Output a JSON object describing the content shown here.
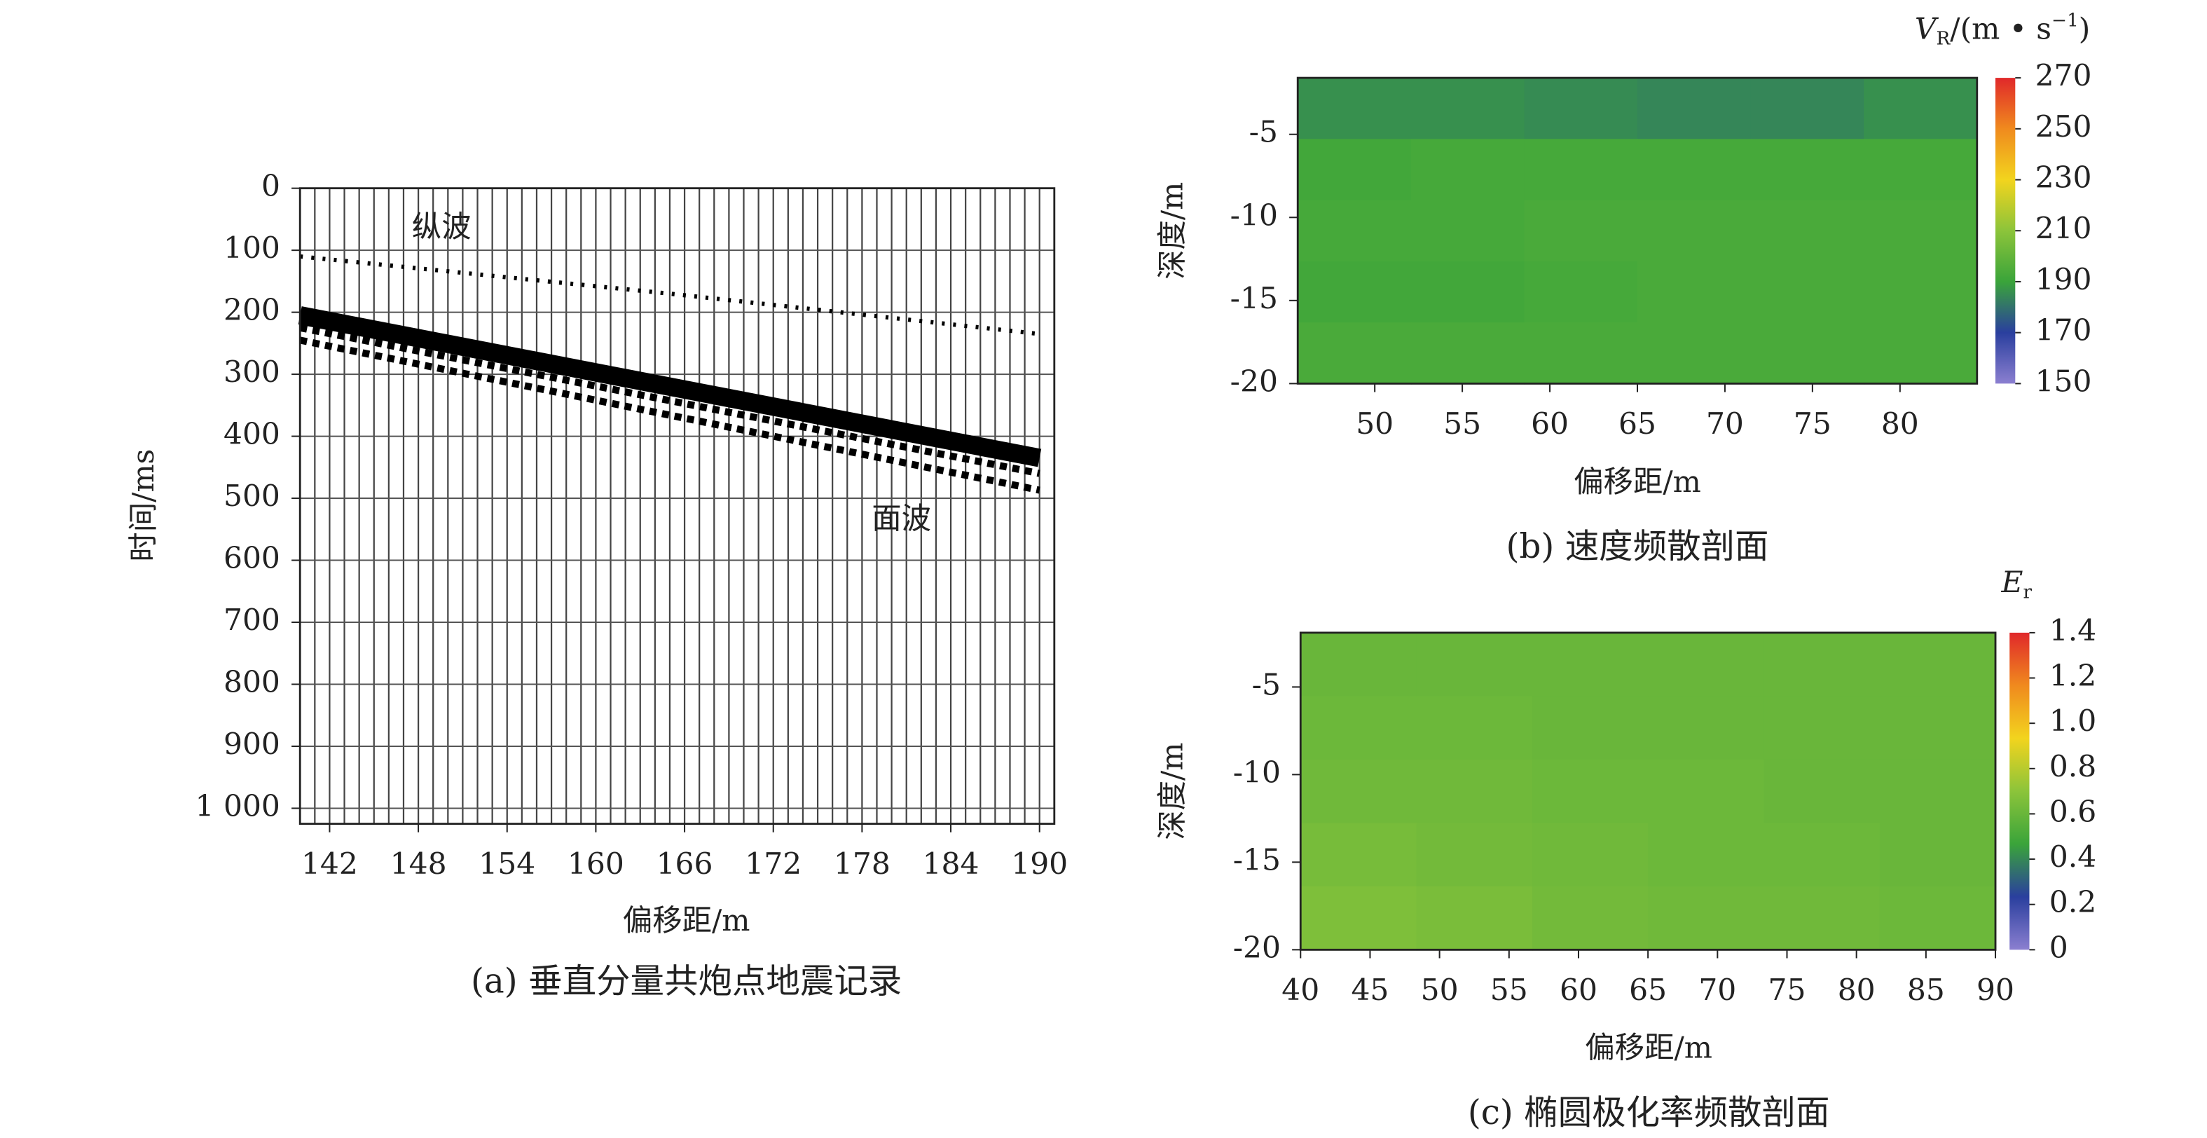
{
  "chart_data": [
    {
      "type": "seismic",
      "caption": "(a) 垂直分量共炮点地震记录",
      "xlabel": "偏移距/m",
      "ylabel": "时间/ms",
      "xlim": [
        140,
        191
      ],
      "xticks": [
        142,
        148,
        154,
        160,
        166,
        172,
        178,
        184,
        190
      ],
      "ylim": [
        0,
        1025
      ],
      "yticks": [
        0,
        100,
        200,
        300,
        400,
        500,
        600,
        700,
        800,
        900,
        {
          "value": 1000,
          "label": "1 000"
        }
      ],
      "y_inverted": true,
      "grid": true,
      "color": "#000000",
      "annotations": [
        "纵波",
        "面波"
      ],
      "series": [
        {
          "x": [
            140,
            165,
            190
          ],
          "values": [
            110,
            170,
            235
          ]
        },
        {
          "x": [
            140,
            190
          ],
          "values": [
            205,
            435
          ]
        },
        {
          "x": [
            140,
            190
          ],
          "values": [
            225,
            460
          ]
        },
        {
          "x": [
            140,
            190
          ],
          "values": [
            245,
            487
          ]
        }
      ]
    },
    {
      "type": "heatmap",
      "caption": "(b) 速度频散剖面",
      "xlabel": "偏移距/m",
      "ylabel": "深度/m",
      "xlim": [
        45.6,
        84.4
      ],
      "xticks": [
        50,
        55,
        60,
        65,
        70,
        75,
        80
      ],
      "ylim": [
        -20,
        -1.6
      ],
      "yticks": [
        -5,
        -10,
        -15,
        -20
      ],
      "colorbar_symbol": "V",
      "colorbar_subscript": "R",
      "colorbar_unit": "/(m • s",
      "colorbar_superscript": "−1",
      "colorbar_unit_end": ")",
      "clim": [
        150,
        270
      ],
      "cticks": [
        150,
        170,
        190,
        210,
        230,
        250,
        270
      ],
      "colormap": [
        "#8b7fd0",
        "#2a3f9e",
        "#3aa43a",
        "#8cc43a",
        "#f2d41e",
        "#f08a1e",
        "#e0282a"
      ],
      "z": [
        [
          186,
          186,
          185,
          184,
          184,
          186
        ],
        [
          192,
          193,
          193,
          193,
          193,
          193
        ],
        [
          193,
          193,
          194,
          194,
          194,
          194
        ],
        [
          192,
          192,
          193,
          194,
          194,
          194
        ],
        [
          194,
          194,
          194,
          194,
          194,
          194
        ]
      ]
    },
    {
      "type": "heatmap",
      "caption": "(c) 椭圆极化率频散剖面",
      "xlabel": "偏移距/m",
      "ylabel": "深度/m",
      "xlim": [
        40,
        90
      ],
      "xticks": [
        40,
        45,
        50,
        55,
        60,
        65,
        70,
        75,
        80,
        85,
        90
      ],
      "ylim": [
        -20,
        -1.9
      ],
      "yticks": [
        -5,
        -10,
        -15,
        -20
      ],
      "colorbar_symbol": "E",
      "colorbar_subscript": "r",
      "clim": [
        0,
        1.4
      ],
      "cticks": [
        0,
        0.2,
        0.4,
        0.6,
        0.8,
        {
          "value": 1,
          "label": "1.0"
        },
        1.2,
        1.4
      ],
      "colormap": [
        "#8b7fd0",
        "#2a3f9e",
        "#3aa43a",
        "#8cc43a",
        "#f2d41e",
        "#f08a1e",
        "#e0282a"
      ],
      "z": [
        [
          0.6,
          0.6,
          0.6,
          0.6,
          0.6,
          0.6
        ],
        [
          0.61,
          0.61,
          0.6,
          0.6,
          0.6,
          0.6
        ],
        [
          0.62,
          0.62,
          0.61,
          0.61,
          0.6,
          0.6
        ],
        [
          0.64,
          0.63,
          0.62,
          0.61,
          0.61,
          0.6
        ],
        [
          0.66,
          0.65,
          0.63,
          0.62,
          0.62,
          0.61
        ]
      ]
    }
  ]
}
